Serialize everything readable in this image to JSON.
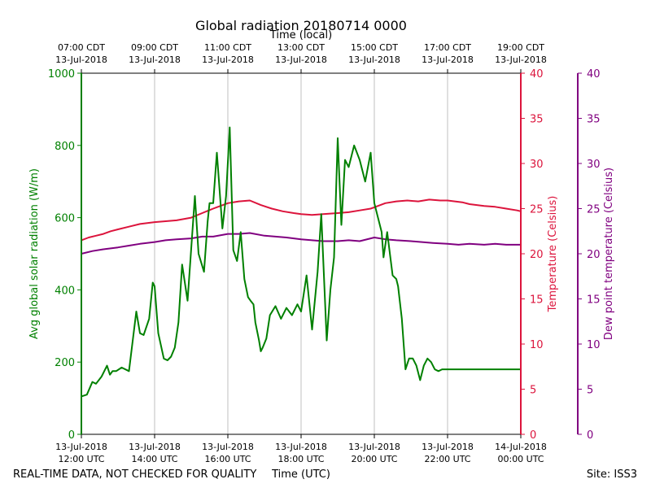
{
  "chart_data": {
    "type": "line",
    "title": "Global radiation 20180714 0000",
    "x_range_utc_hours": [
      12,
      24
    ],
    "top_axis": {
      "label": "Time (local)",
      "ticks": [
        {
          "line1": "07:00 CDT",
          "line2": "13-Jul-2018"
        },
        {
          "line1": "09:00 CDT",
          "line2": "13-Jul-2018"
        },
        {
          "line1": "11:00 CDT",
          "line2": "13-Jul-2018"
        },
        {
          "line1": "13:00 CDT",
          "line2": "13-Jul-2018"
        },
        {
          "line1": "15:00 CDT",
          "line2": "13-Jul-2018"
        },
        {
          "line1": "17:00 CDT",
          "line2": "13-Jul-2018"
        },
        {
          "line1": "19:00 CDT",
          "line2": "13-Jul-2018"
        }
      ]
    },
    "bottom_axis": {
      "label": "Time (UTC)",
      "ticks": [
        {
          "line1": "13-Jul-2018",
          "line2": "12:00 UTC"
        },
        {
          "line1": "13-Jul-2018",
          "line2": "14:00 UTC"
        },
        {
          "line1": "13-Jul-2018",
          "line2": "16:00 UTC"
        },
        {
          "line1": "13-Jul-2018",
          "line2": "18:00 UTC"
        },
        {
          "line1": "13-Jul-2018",
          "line2": "20:00 UTC"
        },
        {
          "line1": "13-Jul-2018",
          "line2": "22:00 UTC"
        },
        {
          "line1": "14-Jul-2018",
          "line2": "00:00 UTC"
        }
      ]
    },
    "left_axis": {
      "label": "Avg global solar radiation (W/m)",
      "ylim": [
        0,
        1000
      ],
      "ticks": [
        "0",
        "200",
        "400",
        "600",
        "800",
        "1000"
      ],
      "color": "#008000"
    },
    "right_axis_temperature": {
      "label": "Temperature (Celsius)",
      "ylim": [
        0,
        40
      ],
      "ticks": [
        "0",
        "5",
        "10",
        "15",
        "20",
        "25",
        "30",
        "35",
        "40"
      ],
      "color": "#dc143c"
    },
    "right_axis_dewpoint": {
      "label": "Dew point temperature (Celsius)",
      "ylim": [
        0,
        40
      ],
      "ticks": [
        "0",
        "5",
        "10",
        "15",
        "20",
        "25",
        "30",
        "35",
        "40"
      ],
      "color": "#800080"
    },
    "series": [
      {
        "name": "Avg global solar radiation",
        "axis": "left",
        "color": "#008000",
        "x": [
          12.0,
          12.15,
          12.3,
          12.4,
          12.55,
          12.7,
          12.78,
          12.85,
          12.95,
          13.1,
          13.3,
          13.5,
          13.6,
          13.7,
          13.85,
          13.95,
          14.0,
          14.1,
          14.25,
          14.35,
          14.45,
          14.55,
          14.65,
          14.75,
          14.9,
          15.1,
          15.2,
          15.35,
          15.45,
          15.5,
          15.6,
          15.7,
          15.85,
          15.95,
          16.05,
          16.15,
          16.25,
          16.35,
          16.45,
          16.55,
          16.62,
          16.7,
          16.75,
          16.85,
          16.9,
          16.95,
          17.05,
          17.15,
          17.3,
          17.45,
          17.6,
          17.75,
          17.9,
          18.0,
          18.15,
          18.3,
          18.45,
          18.55,
          18.7,
          18.8,
          18.9,
          19.0,
          19.1,
          19.2,
          19.3,
          19.45,
          19.6,
          19.75,
          19.9,
          20.0,
          20.1,
          20.2,
          20.25,
          20.35,
          20.5,
          20.6,
          20.65,
          20.75,
          20.85,
          20.95,
          21.05,
          21.15,
          21.25,
          21.35,
          21.45,
          21.55,
          21.65,
          21.75,
          21.85,
          21.95,
          22.05,
          22.15,
          22.25,
          22.35,
          22.45,
          22.55,
          22.65,
          22.75,
          22.85,
          22.95,
          23.05,
          23.15,
          23.25,
          23.35,
          23.5,
          23.65,
          23.8,
          23.9,
          24.0
        ],
        "values": [
          105,
          110,
          145,
          140,
          160,
          190,
          165,
          175,
          175,
          185,
          175,
          340,
          280,
          275,
          320,
          420,
          410,
          280,
          210,
          205,
          215,
          240,
          310,
          470,
          370,
          660,
          500,
          450,
          590,
          640,
          640,
          780,
          570,
          660,
          850,
          510,
          480,
          560,
          430,
          380,
          370,
          360,
          310,
          260,
          230,
          240,
          265,
          330,
          355,
          320,
          350,
          330,
          360,
          340,
          440,
          290,
          450,
          610,
          260,
          400,
          490,
          820,
          580,
          760,
          740,
          800,
          760,
          700,
          780,
          640,
          600,
          560,
          490,
          560,
          440,
          430,
          410,
          320,
          180,
          210,
          210,
          190,
          150,
          190,
          210,
          200,
          180,
          175,
          180,
          180,
          180,
          180,
          180,
          180,
          180,
          180,
          180,
          180,
          180,
          180,
          180,
          180,
          180,
          180,
          180,
          180,
          180,
          180,
          180
        ]
      },
      {
        "name": "Temperature",
        "axis": "right_temperature",
        "color": "#dc143c",
        "x": [
          12.0,
          12.2,
          12.4,
          12.6,
          12.8,
          13.0,
          13.3,
          13.6,
          13.8,
          14.0,
          14.3,
          14.6,
          15.0,
          15.3,
          15.6,
          16.0,
          16.3,
          16.6,
          16.9,
          17.2,
          17.5,
          17.8,
          18.0,
          18.3,
          18.6,
          19.0,
          19.3,
          19.6,
          19.9,
          20.1,
          20.3,
          20.6,
          20.9,
          21.2,
          21.5,
          21.8,
          22.0,
          22.2,
          22.4,
          22.6,
          22.8,
          23.0,
          23.3,
          23.6,
          23.9,
          24.0
        ],
        "values": [
          21.5,
          21.8,
          22.0,
          22.2,
          22.5,
          22.7,
          23.0,
          23.3,
          23.4,
          23.5,
          23.6,
          23.7,
          24.0,
          24.5,
          25.0,
          25.6,
          25.8,
          25.9,
          25.4,
          25.0,
          24.7,
          24.5,
          24.4,
          24.3,
          24.4,
          24.5,
          24.6,
          24.8,
          25.0,
          25.3,
          25.6,
          25.8,
          25.9,
          25.8,
          26.0,
          25.9,
          25.9,
          25.8,
          25.7,
          25.5,
          25.4,
          25.3,
          25.2,
          25.0,
          24.8,
          24.7
        ]
      },
      {
        "name": "Dew point temperature",
        "axis": "right_dewpoint",
        "color": "#800080",
        "x": [
          12.0,
          12.3,
          12.6,
          13.0,
          13.3,
          13.6,
          14.0,
          14.3,
          14.6,
          15.0,
          15.3,
          15.6,
          16.0,
          16.3,
          16.6,
          17.0,
          17.3,
          17.6,
          18.0,
          18.3,
          18.6,
          19.0,
          19.3,
          19.6,
          20.0,
          20.3,
          20.6,
          21.0,
          21.3,
          21.6,
          22.0,
          22.3,
          22.6,
          23.0,
          23.3,
          23.6,
          24.0
        ],
        "values": [
          20.0,
          20.3,
          20.5,
          20.7,
          20.9,
          21.1,
          21.3,
          21.5,
          21.6,
          21.7,
          21.9,
          21.9,
          22.2,
          22.2,
          22.3,
          22.0,
          21.9,
          21.8,
          21.6,
          21.5,
          21.4,
          21.4,
          21.5,
          21.4,
          21.8,
          21.6,
          21.5,
          21.4,
          21.3,
          21.2,
          21.1,
          21.0,
          21.1,
          21.0,
          21.1,
          21.0,
          21.0
        ]
      }
    ]
  },
  "footer": {
    "left_note": "REAL-TIME DATA, NOT CHECKED FOR QUALITY",
    "site": "Site: ISS3"
  }
}
